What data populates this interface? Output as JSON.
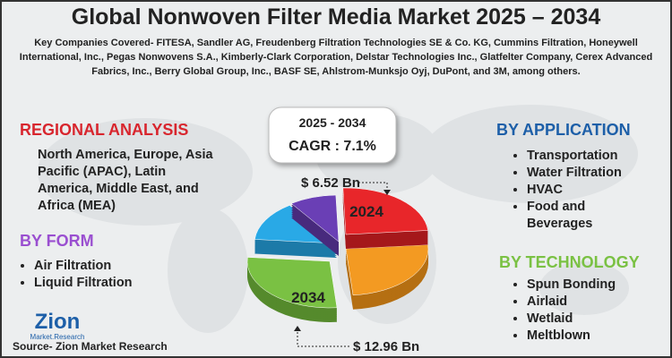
{
  "header": {
    "title": "Global Nonwoven Filter Media Market 2025 – 2034",
    "companies": "Key Companies Covered- FITESA, Sandler AG, Freudenberg Filtration Technologies SE & Co. KG, Cummins Filtration, Honeywell International, Inc., Pegas Nonwovens S.A., Kimberly-Clark Corporation, Delstar Technologies Inc., Glatfelter Company, Cerex Advanced Fabrics, Inc., Berry Global Group, Inc., BASF SE, Ahlstrom-Munksjo Oyj, DuPont, and 3M, among others."
  },
  "cagr": {
    "period": "2025 - 2034",
    "label": "CAGR : 7.1%"
  },
  "pie": {
    "value_2024": "$ 6.52 Bn",
    "year_2024": "2024",
    "year_2034": "2034",
    "value_2034": "$ 12.96 Bn"
  },
  "regional": {
    "title": "REGIONAL ANALYSIS",
    "text": "North America, Europe, Asia Pacific (APAC), Latin America, Middle East, and Africa (MEA)"
  },
  "form": {
    "title": "BY FORM",
    "items": [
      "Air Filtration",
      "Liquid Filtration"
    ]
  },
  "application": {
    "title": "BY APPLICATION",
    "items": [
      "Transportation",
      "Water Filtration",
      "HVAC",
      "Food and Beverages"
    ]
  },
  "technology": {
    "title": "BY TECHNOLOGY",
    "items": [
      "Spun Bonding",
      "Airlaid",
      "Wetlaid",
      "Meltblown"
    ]
  },
  "logo": {
    "name": "Zion",
    "sub": "Market.Research"
  },
  "source": "Source- Zion Market Research"
}
